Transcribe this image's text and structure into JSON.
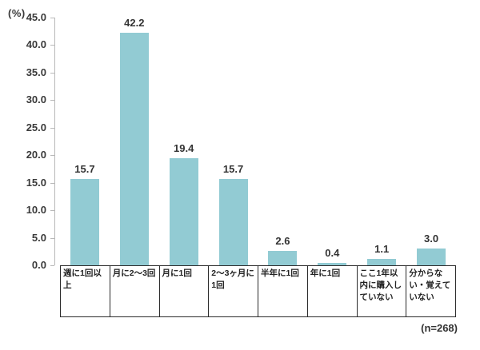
{
  "chart_data": {
    "type": "bar",
    "title": "",
    "unit_label": "(%)",
    "categories": [
      "週に1回以上",
      "月に2〜3回",
      "月に1回",
      "2〜3ヶ月に1回",
      "半年に1回",
      "年に1回",
      "ここ1年以内に購入していない",
      "分からない・覚えていない"
    ],
    "values": [
      15.7,
      42.2,
      19.4,
      15.7,
      2.6,
      0.4,
      1.1,
      3.0
    ],
    "value_labels": [
      "15.7",
      "42.2",
      "19.4",
      "15.7",
      "2.6",
      "0.4",
      "1.1",
      "3.0"
    ],
    "ylim": [
      0,
      45
    ],
    "ytick_labels": [
      "0.0",
      "5.0",
      "10.0",
      "15.0",
      "20.0",
      "25.0",
      "30.0",
      "35.0",
      "40.0",
      "45.0"
    ],
    "grid": false,
    "legend_position": "none",
    "bar_color": "#92CBD3",
    "axis_color": "#b8b8b8",
    "sample_note": "(n=268)"
  }
}
